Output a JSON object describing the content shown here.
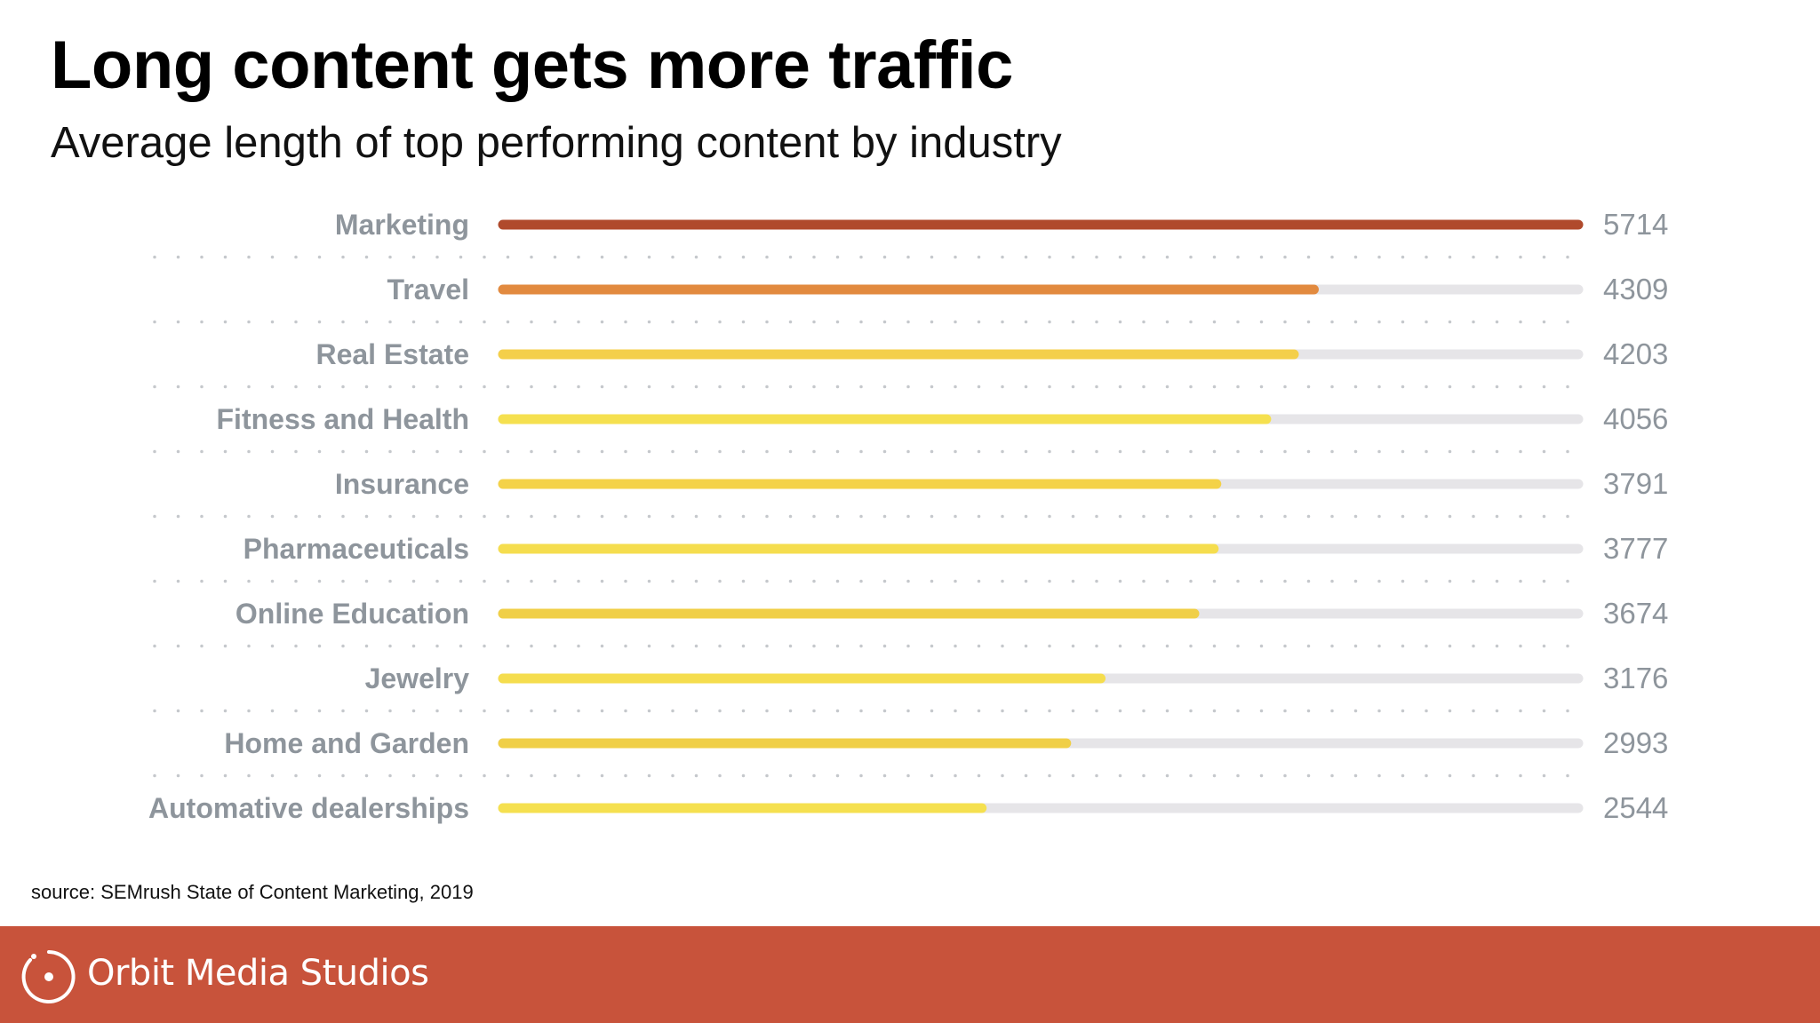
{
  "slide": {
    "title": "Long content gets more traffic",
    "subtitle": "Average length of top performing content by industry",
    "source": "source: SEMrush State of Content Marketing, 2019"
  },
  "footer": {
    "brand": "Orbit Media Studios",
    "color": "#c8533b",
    "logo_icon": "orbit-circle-logo-icon"
  },
  "chart_data": {
    "type": "bar",
    "orientation": "horizontal",
    "categories": [
      "Marketing",
      "Travel",
      "Real Estate",
      "Fitness and Health",
      "Insurance",
      "Pharmaceuticals",
      "Online Education",
      "Jewelry",
      "Home and Garden",
      "Automative dealerships"
    ],
    "values": [
      5714,
      4309,
      4203,
      4056,
      3791,
      3777,
      3674,
      3176,
      2993,
      2544
    ],
    "value_labels": [
      "5714",
      "4309",
      "4203",
      "4056",
      "3791",
      "3777",
      "3674",
      "3176",
      "2993",
      "2544"
    ],
    "xlim": [
      0,
      5714
    ],
    "grid": false,
    "legend": "none",
    "colors": {
      "bars": [
        "#b04a2c",
        "#e28a3f",
        "#f4cf4a",
        "#f5e04f",
        "#f4d248",
        "#f5dd4e",
        "#f0cf47",
        "#f5dd4e",
        "#f0cf47",
        "#f5e04f"
      ],
      "track": "#e6e5e8",
      "labels": "#8e959c",
      "dots": "#c5c8cc"
    }
  }
}
